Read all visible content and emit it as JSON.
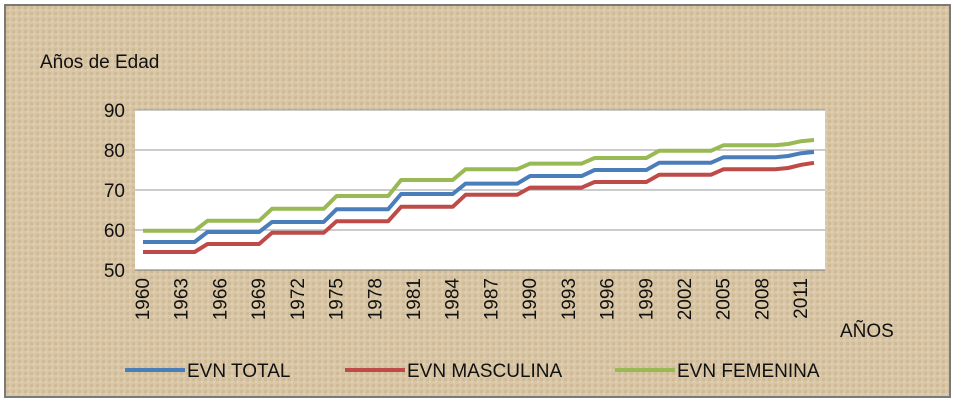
{
  "chart_data": {
    "type": "line",
    "y_axis_label": "Años de Edad",
    "x_axis_label": "AÑOS",
    "categories": [
      "1960",
      null,
      null,
      "1963",
      null,
      null,
      "1966",
      null,
      null,
      "1969",
      null,
      null,
      "1972",
      null,
      null,
      "1975",
      null,
      null,
      "1978",
      null,
      null,
      "1981",
      null,
      null,
      "1984",
      null,
      null,
      "1987",
      null,
      null,
      "1990",
      null,
      null,
      "1993",
      null,
      null,
      "1996",
      null,
      null,
      "1999",
      null,
      null,
      "2002",
      null,
      null,
      "2005",
      null,
      null,
      "2008",
      null,
      null,
      "2011",
      null
    ],
    "series": [
      {
        "name": "EVN TOTAL",
        "color": "#4a7ebb",
        "values": [
          57,
          57,
          57,
          57,
          57,
          59.5,
          59.5,
          59.5,
          59.5,
          59.5,
          62,
          62,
          62,
          62,
          62,
          65.2,
          65.2,
          65.2,
          65.2,
          65.2,
          69,
          69,
          69,
          69,
          69,
          71.6,
          71.6,
          71.6,
          71.6,
          71.6,
          73.5,
          73.5,
          73.5,
          73.5,
          73.5,
          75,
          75,
          75,
          75,
          75,
          76.8,
          76.8,
          76.8,
          76.8,
          76.8,
          78.2,
          78.2,
          78.2,
          78.2,
          78.2,
          78.5,
          79.2,
          79.5
        ]
      },
      {
        "name": "EVN MASCULINA",
        "color": "#be4b48",
        "values": [
          54.5,
          54.5,
          54.5,
          54.5,
          54.5,
          56.5,
          56.5,
          56.5,
          56.5,
          56.5,
          59.3,
          59.3,
          59.3,
          59.3,
          59.3,
          62.2,
          62.2,
          62.2,
          62.2,
          62.2,
          65.8,
          65.8,
          65.8,
          65.8,
          65.8,
          68.8,
          68.8,
          68.8,
          68.8,
          68.8,
          70.6,
          70.6,
          70.6,
          70.6,
          70.6,
          72,
          72,
          72,
          72,
          72,
          73.8,
          73.8,
          73.8,
          73.8,
          73.8,
          75.2,
          75.2,
          75.2,
          75.2,
          75.2,
          75.5,
          76.3,
          76.8
        ]
      },
      {
        "name": "EVN FEMENINA",
        "color": "#98b954",
        "values": [
          59.8,
          59.8,
          59.8,
          59.8,
          59.8,
          62.3,
          62.3,
          62.3,
          62.3,
          62.3,
          65.3,
          65.3,
          65.3,
          65.3,
          65.3,
          68.5,
          68.5,
          68.5,
          68.5,
          68.5,
          72.5,
          72.5,
          72.5,
          72.5,
          72.5,
          75.2,
          75.2,
          75.2,
          75.2,
          75.2,
          76.6,
          76.6,
          76.6,
          76.6,
          76.6,
          78,
          78,
          78,
          78,
          78,
          79.8,
          79.8,
          79.8,
          79.8,
          79.8,
          81.2,
          81.2,
          81.2,
          81.2,
          81.2,
          81.5,
          82.2,
          82.5
        ]
      }
    ],
    "ylim": [
      50,
      90
    ],
    "yticks": [
      50,
      60,
      70,
      80,
      90
    ],
    "grid": true,
    "legend": "bottom"
  }
}
